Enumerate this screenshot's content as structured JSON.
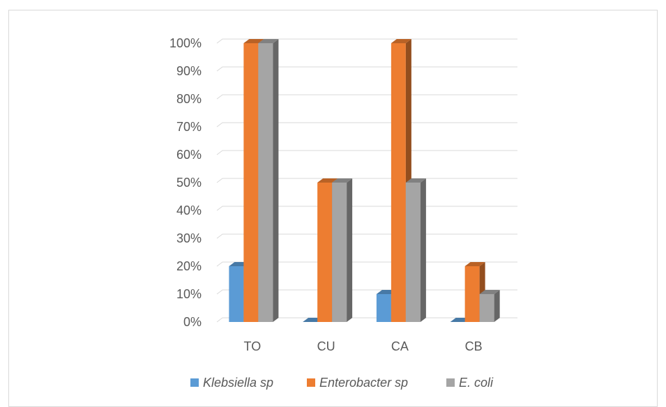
{
  "chart_data": {
    "type": "bar",
    "categories": [
      "TO",
      "CU",
      "CA",
      "CB"
    ],
    "series": [
      {
        "name": "Klebsiella sp",
        "values": [
          20,
          0,
          10,
          0
        ],
        "color": "#5b9bd5"
      },
      {
        "name": "Enterobacter sp",
        "values": [
          100,
          50,
          100,
          20
        ],
        "color": "#ed7d31"
      },
      {
        "name": "E. coli",
        "values": [
          100,
          50,
          50,
          10
        ],
        "color": "#a5a5a5"
      }
    ],
    "y_ticks": [
      "0%",
      "10%",
      "20%",
      "30%",
      "40%",
      "50%",
      "60%",
      "70%",
      "80%",
      "90%",
      "100%"
    ],
    "ylim": [
      0,
      100
    ],
    "grid": true,
    "legend_position": "bottom",
    "style": "3d-clustered-column"
  }
}
